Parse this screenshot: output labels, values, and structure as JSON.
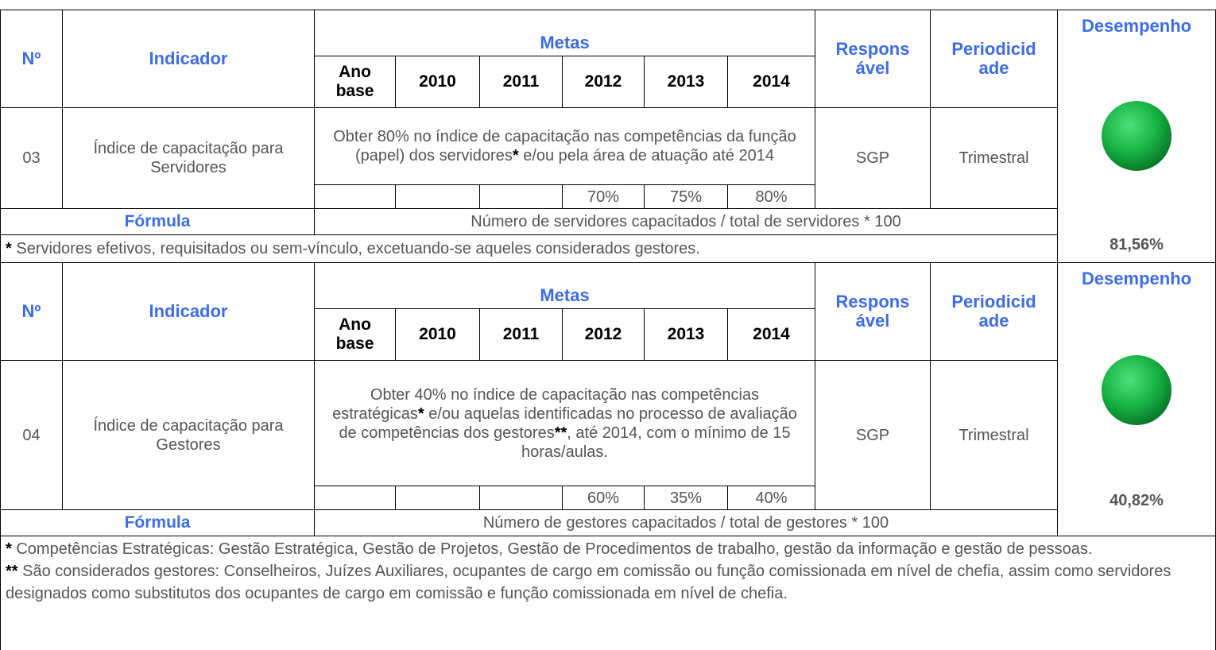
{
  "blocks": [
    {
      "header": {
        "no": "Nº",
        "indicador": "Indicador",
        "metas": "Metas",
        "years": [
          "Ano base",
          "2010",
          "2011",
          "2012",
          "2013",
          "2014"
        ],
        "responsavel": "Responsável",
        "periodicidade": "Periodicidade",
        "desempenho": "Desempenho"
      },
      "no": "03",
      "indicador": "Índice de capacitação para Servidores",
      "meta": [
        "Obter 80% no índice de capacitação nas competências da função (papel) dos servidores",
        "*",
        " e/ou pela área de atuação até 2014"
      ],
      "targets": [
        "70%",
        "75%",
        "80%"
      ],
      "responsavel": "SGP",
      "periodicidade": "Trimestral",
      "formula_label": "Fórmula",
      "formula": "Número de servidores capacitados / total de servidores * 100",
      "desempenho": "81,56%",
      "footnotes": [
        [
          "*",
          " Servidores efetivos, requisitados ou sem-vínculo, excetuando-se aqueles considerados gestores."
        ]
      ]
    },
    {
      "header": {
        "no": "Nº",
        "indicador": "Indicador",
        "metas": "Metas",
        "years": [
          "Ano base",
          "2010",
          "2011",
          "2012",
          "2013",
          "2014"
        ],
        "responsavel": "Responsável",
        "periodicidade": "Periodicidade",
        "desempenho": "Desempenho"
      },
      "no": "04",
      "indicador": "Índice de capacitação para Gestores",
      "meta": [
        "Obter 40% no índice de capacitação nas competências estratégicas",
        "*",
        " e/ou aquelas identificadas no processo de avaliação de competências dos gestores",
        "**",
        ", até 2014, com o mínimo de 15 horas/aulas."
      ],
      "targets": [
        "60%",
        "35%",
        "40%"
      ],
      "responsavel": "SGP",
      "periodicidade": "Trimestral",
      "formula_label": "Fórmula",
      "formula": "Número de gestores capacitados / total de gestores  * 100",
      "desempenho": "40,82%",
      "footnotes": [
        [
          "*",
          " Competências Estratégicas: Gestão Estratégica, Gestão de Projetos, Gestão de Procedimentos de trabalho, gestão da informação e gestão de pessoas."
        ],
        [
          "**",
          " São considerados gestores: Conselheiros, Juízes Auxiliares, ocupantes de cargo em comissão ou função comissionada em nível de chefia, assim como servidores designados como substitutos dos ocupantes de cargo em comissão e função comissionada em nível de chefia."
        ]
      ]
    }
  ]
}
